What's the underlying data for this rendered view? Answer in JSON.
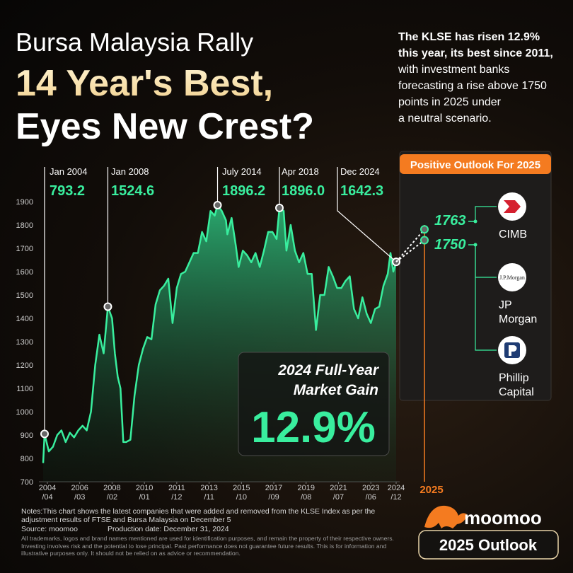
{
  "header": {
    "title": "Bursa Malaysia Rally",
    "headline": [
      "14 Year's Best,",
      "Eyes New Crest?"
    ],
    "summary_bold": [
      "The KLSE has risen 12.9%",
      "this year, its best since 2011,"
    ],
    "summary": [
      "with investment banks",
      "forecasting a rise above 1750",
      "points in 2025 under",
      "a neutral scenario."
    ]
  },
  "chart_data": {
    "type": "line",
    "color": "#39ee9e",
    "x": [
      "2004/01",
      "2004/02",
      "2004/05",
      "2004/08",
      "2004/11",
      "2005/02",
      "2005/05",
      "2005/08",
      "2005/11",
      "2006/02",
      "2006/05",
      "2006/08",
      "2006/11",
      "2007/02",
      "2007/05",
      "2007/08",
      "2007/11",
      "2008/02",
      "2008/04",
      "2008/06",
      "2008/08",
      "2008/10",
      "2008/12",
      "2009/03",
      "2009/06",
      "2009/09",
      "2009/12",
      "2010/03",
      "2010/06",
      "2010/09",
      "2010/12",
      "2011/03",
      "2011/06",
      "2011/09",
      "2011/12",
      "2012/03",
      "2012/06",
      "2012/09",
      "2012/12",
      "2013/03",
      "2013/06",
      "2013/09",
      "2013/12",
      "2014/03",
      "2014/05",
      "2014/08",
      "2014/11",
      "2014/12",
      "2015/03",
      "2015/06",
      "2015/08",
      "2015/11",
      "2016/02",
      "2016/05",
      "2016/08",
      "2016/11",
      "2017/02",
      "2017/05",
      "2017/08",
      "2017/11",
      "2018/01",
      "2018/04",
      "2018/06",
      "2018/09",
      "2018/12",
      "2019/03",
      "2019/06",
      "2019/09",
      "2019/12",
      "2020/03",
      "2020/06",
      "2020/09",
      "2020/12",
      "2021/03",
      "2021/06",
      "2021/09",
      "2021/12",
      "2022/03",
      "2022/06",
      "2022/09",
      "2022/12",
      "2023/03",
      "2023/06",
      "2023/09",
      "2023/12",
      "2024/03",
      "2024/06",
      "2024/08",
      "2024/10",
      "2024/12"
    ],
    "values": [
      780,
      905,
      830,
      850,
      900,
      920,
      870,
      910,
      890,
      920,
      940,
      920,
      1000,
      1200,
      1330,
      1250,
      1450,
      1400,
      1250,
      1150,
      1100,
      870,
      870,
      880,
      1070,
      1200,
      1270,
      1320,
      1310,
      1460,
      1520,
      1540,
      1570,
      1380,
      1530,
      1590,
      1600,
      1640,
      1680,
      1680,
      1770,
      1730,
      1860,
      1840,
      1885,
      1860,
      1820,
      1760,
      1830,
      1710,
      1620,
      1690,
      1670,
      1640,
      1680,
      1620,
      1690,
      1770,
      1770,
      1740,
      1873,
      1860,
      1690,
      1800,
      1690,
      1640,
      1680,
      1590,
      1590,
      1350,
      1500,
      1500,
      1620,
      1580,
      1530,
      1530,
      1560,
      1580,
      1440,
      1400,
      1490,
      1420,
      1380,
      1440,
      1450,
      1540,
      1590,
      1680,
      1600,
      1642
    ],
    "xlim": [
      "2004/01",
      "2024/12"
    ],
    "xticks": [
      {
        "value": "2004/04",
        "label": [
          "2004",
          "/04"
        ]
      },
      {
        "value": "2006/03",
        "label": [
          "2006",
          "/03"
        ]
      },
      {
        "value": "2008/02",
        "label": [
          "2008",
          "/02"
        ]
      },
      {
        "value": "2010/01",
        "label": [
          "2010",
          "/01"
        ]
      },
      {
        "value": "2011/12",
        "label": [
          "2011",
          "/12"
        ]
      },
      {
        "value": "2013/11",
        "label": [
          "2013",
          "/11"
        ]
      },
      {
        "value": "2015/10",
        "label": [
          "2015",
          "/10"
        ]
      },
      {
        "value": "2017/09",
        "label": [
          "2017",
          "/09"
        ]
      },
      {
        "value": "2019/08",
        "label": [
          "2019",
          "/08"
        ]
      },
      {
        "value": "2021/07",
        "label": [
          "2021",
          "/07"
        ]
      },
      {
        "value": "2023/06",
        "label": [
          "2023",
          "/06"
        ]
      },
      {
        "value": "2024/12",
        "label": [
          "2024",
          "/12"
        ]
      }
    ],
    "ylim": [
      700,
      1900
    ],
    "yticks": [
      700,
      800,
      900,
      1000,
      1100,
      1200,
      1300,
      1400,
      1500,
      1600,
      1700,
      1800,
      1900
    ],
    "grid": false,
    "annotations": [
      {
        "date": "Jan 2004",
        "level": "793.2",
        "x": "2004/02"
      },
      {
        "date": "Jan 2008",
        "level": "1524.6",
        "x": "2007/11"
      },
      {
        "date": "July 2014",
        "level": "1896.2",
        "x": "2014/05"
      },
      {
        "date": "Apr 2018",
        "level": "1896.0",
        "x": "2018/01"
      },
      {
        "date": "Dec 2024",
        "level": "1642.3",
        "x": "2024/12"
      }
    ],
    "gain_title": [
      "2024 Full-Year",
      "Market Gain"
    ],
    "gain": "12.9%",
    "forecast_label": "2025",
    "forecast_title": "Positive Outlook For 2025",
    "forecast_color": "#f47b20",
    "forecasts": [
      {
        "value": 1763,
        "banks": [
          {
            "name": [
              "CIMB"
            ]
          }
        ]
      },
      {
        "value": 1750,
        "banks": [
          {
            "name": [
              "JP",
              "Morgan"
            ],
            "logo_text": "J.P.Morgan"
          },
          {
            "name": [
              "Phillip",
              "Capital"
            ]
          }
        ]
      }
    ]
  },
  "footer": {
    "notes": "Notes:This chart shows the latest companies that were added and removed from the KLSE Index as per the adjustment results of FTSE and Bursa Malaysia on December 5",
    "source": "Source: moomoo",
    "production": "Production date: December 31, 2024",
    "disclaimer": "All trademarks, logos and brand names mentioned are used for identification purposes, and remain the property of their respective owners. Investing involves risk and the potential to lose principal. Past performance does not guarantee future results. This is for information and illustrative purposes only. It should not be relied on as advice or recommendation.",
    "brand": "moomoo",
    "badge": "2025 Outlook"
  }
}
